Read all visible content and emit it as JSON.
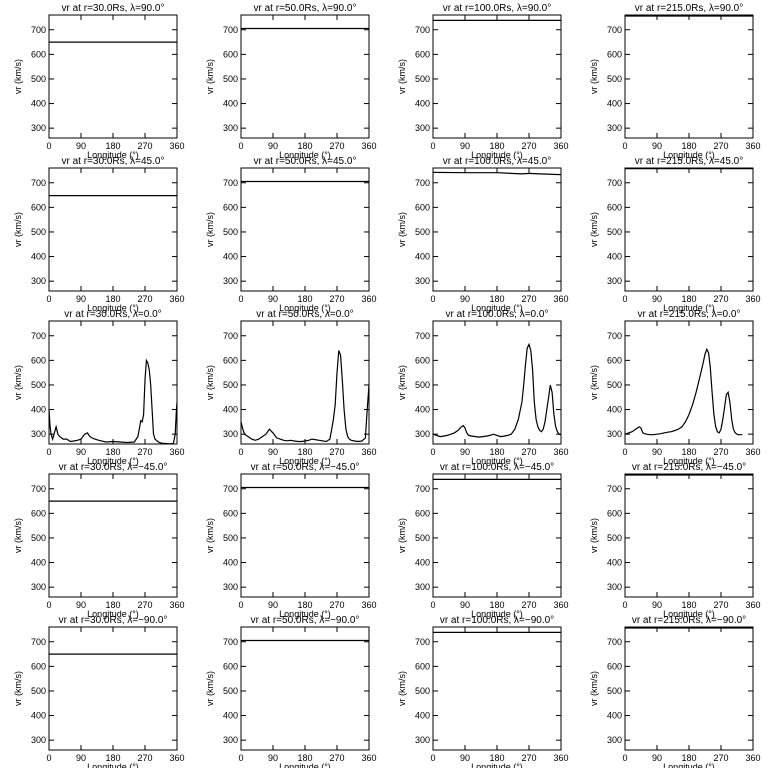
{
  "figure": {
    "x_label": "Longitude (°)",
    "y_label": "vr (km/s)",
    "x_ticks": [
      0,
      90,
      180,
      270,
      360
    ],
    "y_ticks": [
      300,
      400,
      500,
      600,
      700
    ],
    "xlim": [
      0,
      360
    ],
    "ylim": [
      260,
      760
    ]
  },
  "chart_data": [
    {
      "type": "line",
      "title": "vr at r=30.0Rs, λ=90.0°",
      "xlabel": "Longitude (°)",
      "ylabel": "vr (km/s)",
      "xlim": [
        0,
        360
      ],
      "ylim": [
        260,
        760
      ],
      "series": [
        {
          "x": [
            0,
            360
          ],
          "y": [
            650,
            650
          ]
        }
      ]
    },
    {
      "type": "line",
      "title": "vr at r=50.0Rs, λ=90.0°",
      "xlabel": "Longitude (°)",
      "ylabel": "vr (km/s)",
      "xlim": [
        0,
        360
      ],
      "ylim": [
        260,
        760
      ],
      "series": [
        {
          "x": [
            0,
            360
          ],
          "y": [
            705,
            705
          ]
        }
      ]
    },
    {
      "type": "line",
      "title": "vr at r=100.0Rs, λ=90.0°",
      "xlabel": "Longitude (°)",
      "ylabel": "vr (km/s)",
      "xlim": [
        0,
        360
      ],
      "ylim": [
        260,
        760
      ],
      "series": [
        {
          "x": [
            0,
            360
          ],
          "y": [
            738,
            738
          ]
        }
      ]
    },
    {
      "type": "line",
      "title": "vr at r=215.0Rs, λ=90.0°",
      "xlabel": "Longitude (°)",
      "ylabel": "vr (km/s)",
      "xlim": [
        0,
        360
      ],
      "ylim": [
        260,
        760
      ],
      "series": [
        {
          "x": [
            0,
            360
          ],
          "y": [
            756,
            756
          ]
        }
      ]
    },
    {
      "type": "line",
      "title": "vr at r=30.0Rs, λ=45.0°",
      "xlabel": "Longitude (°)",
      "ylabel": "vr (km/s)",
      "xlim": [
        0,
        360
      ],
      "ylim": [
        260,
        760
      ],
      "series": [
        {
          "x": [
            0,
            360
          ],
          "y": [
            648,
            648
          ]
        }
      ]
    },
    {
      "type": "line",
      "title": "vr at r=50.0Rs, λ=45.0°",
      "xlabel": "Longitude (°)",
      "ylabel": "vr (km/s)",
      "xlim": [
        0,
        360
      ],
      "ylim": [
        260,
        760
      ],
      "series": [
        {
          "x": [
            0,
            360
          ],
          "y": [
            705,
            705
          ]
        }
      ]
    },
    {
      "type": "line",
      "title": "vr at r=100.0Rs, λ=45.0°",
      "xlabel": "Longitude (°)",
      "ylabel": "vr (km/s)",
      "xlim": [
        0,
        360
      ],
      "ylim": [
        260,
        760
      ],
      "series": [
        {
          "x": [
            0,
            90,
            180,
            250,
            270,
            300,
            360
          ],
          "y": [
            742,
            741,
            741,
            736,
            738,
            736,
            733
          ]
        }
      ]
    },
    {
      "type": "line",
      "title": "vr at r=215.0Rs, λ=45.0°",
      "xlabel": "Longitude (°)",
      "ylabel": "vr (km/s)",
      "xlim": [
        0,
        360
      ],
      "ylim": [
        260,
        760
      ],
      "series": [
        {
          "x": [
            0,
            360
          ],
          "y": [
            757,
            757
          ]
        }
      ]
    },
    {
      "type": "line",
      "title": "vr at r=30.0Rs, λ=0.0°",
      "xlabel": "Longitude (°)",
      "ylabel": "vr (km/s)",
      "xlim": [
        0,
        360
      ],
      "ylim": [
        260,
        760
      ],
      "series": [
        {
          "x": [
            0,
            3,
            6,
            10,
            14,
            20,
            25,
            30,
            40,
            50,
            60,
            70,
            80,
            90,
            100,
            108,
            115,
            125,
            140,
            160,
            180,
            200,
            220,
            240,
            250,
            255,
            258,
            262,
            266,
            270,
            274,
            278,
            282,
            286,
            290,
            294,
            298,
            302,
            306,
            310,
            315,
            320,
            330,
            340,
            350,
            355,
            358,
            360
          ],
          "y": [
            400,
            330,
            300,
            280,
            300,
            330,
            300,
            290,
            280,
            280,
            270,
            272,
            275,
            280,
            300,
            305,
            290,
            282,
            275,
            268,
            270,
            268,
            266,
            268,
            290,
            330,
            355,
            350,
            380,
            520,
            600,
            590,
            560,
            500,
            400,
            300,
            280,
            275,
            270,
            266,
            264,
            263,
            262,
            261,
            262,
            300,
            390,
            430
          ]
        }
      ]
    },
    {
      "type": "line",
      "title": "vr at r=50.0Rs, λ=0.0°",
      "xlabel": "Longitude (°)",
      "ylabel": "vr (km/s)",
      "xlim": [
        0,
        360
      ],
      "ylim": [
        260,
        760
      ],
      "series": [
        {
          "x": [
            0,
            5,
            10,
            15,
            20,
            30,
            40,
            50,
            60,
            70,
            80,
            90,
            100,
            110,
            120,
            130,
            140,
            150,
            160,
            170,
            180,
            190,
            200,
            220,
            240,
            250,
            255,
            260,
            265,
            270,
            275,
            280,
            285,
            290,
            295,
            300,
            305,
            310,
            320,
            330,
            340,
            350,
            355,
            360
          ],
          "y": [
            350,
            320,
            300,
            295,
            290,
            280,
            275,
            280,
            290,
            300,
            320,
            305,
            285,
            280,
            275,
            273,
            275,
            272,
            270,
            270,
            272,
            275,
            280,
            275,
            270,
            280,
            320,
            360,
            420,
            550,
            640,
            620,
            520,
            400,
            320,
            290,
            280,
            275,
            272,
            270,
            272,
            285,
            400,
            500
          ]
        }
      ]
    },
    {
      "type": "line",
      "title": "vr at r=100.0Rs, λ=0.0°",
      "xlabel": "Longitude (°)",
      "ylabel": "vr (km/s)",
      "xlim": [
        0,
        360
      ],
      "ylim": [
        260,
        760
      ],
      "series": [
        {
          "x": [
            0,
            10,
            20,
            30,
            40,
            50,
            60,
            70,
            80,
            85,
            90,
            95,
            100,
            110,
            120,
            130,
            140,
            150,
            160,
            170,
            180,
            190,
            200,
            210,
            220,
            230,
            240,
            250,
            255,
            260,
            265,
            270,
            275,
            280,
            285,
            290,
            295,
            300,
            305,
            310,
            315,
            320,
            325,
            330,
            335,
            340,
            345,
            350,
            355,
            360
          ],
          "y": [
            300,
            295,
            290,
            292,
            295,
            300,
            305,
            315,
            330,
            335,
            325,
            305,
            295,
            292,
            290,
            288,
            290,
            292,
            295,
            300,
            295,
            290,
            292,
            295,
            300,
            320,
            360,
            430,
            500,
            580,
            650,
            665,
            640,
            560,
            430,
            360,
            330,
            315,
            310,
            320,
            350,
            400,
            450,
            500,
            470,
            380,
            330,
            310,
            300,
            298
          ]
        }
      ]
    },
    {
      "type": "line",
      "title": "vr at r=215.0Rs, λ=0.0°",
      "xlabel": "Longitude (°)",
      "ylabel": "vr (km/s)",
      "xlim": [
        0,
        360
      ],
      "ylim": [
        260,
        760
      ],
      "series": [
        {
          "x": [
            0,
            10,
            20,
            30,
            40,
            45,
            50,
            60,
            70,
            80,
            90,
            100,
            110,
            120,
            130,
            140,
            150,
            160,
            170,
            180,
            190,
            200,
            210,
            220,
            225,
            230,
            235,
            240,
            245,
            250,
            255,
            260,
            265,
            270,
            275,
            280,
            285,
            290,
            295,
            300,
            305,
            310,
            315,
            320,
            325,
            330
          ],
          "y": [
            300,
            305,
            310,
            320,
            330,
            325,
            305,
            300,
            298,
            298,
            300,
            302,
            305,
            308,
            310,
            315,
            320,
            330,
            350,
            380,
            420,
            470,
            530,
            590,
            625,
            645,
            630,
            570,
            470,
            380,
            330,
            310,
            305,
            320,
            360,
            410,
            460,
            470,
            430,
            360,
            320,
            305,
            300,
            298,
            298,
            298
          ]
        }
      ]
    },
    {
      "type": "line",
      "title": "vr at r=30.0Rs, λ=−45.0°",
      "xlabel": "Longitude (°)",
      "ylabel": "vr (km/s)",
      "xlim": [
        0,
        360
      ],
      "ylim": [
        260,
        760
      ],
      "series": [
        {
          "x": [
            0,
            360
          ],
          "y": [
            650,
            650
          ]
        }
      ]
    },
    {
      "type": "line",
      "title": "vr at r=50.0Rs, λ=−45.0°",
      "xlabel": "Longitude (°)",
      "ylabel": "vr (km/s)",
      "xlim": [
        0,
        360
      ],
      "ylim": [
        260,
        760
      ],
      "series": [
        {
          "x": [
            0,
            360
          ],
          "y": [
            705,
            705
          ]
        }
      ]
    },
    {
      "type": "line",
      "title": "vr at r=100.0Rs, λ=−45.0°",
      "xlabel": "Longitude (°)",
      "ylabel": "vr (km/s)",
      "xlim": [
        0,
        360
      ],
      "ylim": [
        260,
        760
      ],
      "series": [
        {
          "x": [
            0,
            360
          ],
          "y": [
            738,
            738
          ]
        }
      ]
    },
    {
      "type": "line",
      "title": "vr at r=215.0Rs, λ=−45.0°",
      "xlabel": "Longitude (°)",
      "ylabel": "vr (km/s)",
      "xlim": [
        0,
        360
      ],
      "ylim": [
        260,
        760
      ],
      "series": [
        {
          "x": [
            0,
            360
          ],
          "y": [
            756,
            756
          ]
        }
      ]
    },
    {
      "type": "line",
      "title": "vr at r=30.0Rs, λ=−90.0°",
      "xlabel": "Longitude (°)",
      "ylabel": "vr (km/s)",
      "xlim": [
        0,
        360
      ],
      "ylim": [
        260,
        760
      ],
      "series": [
        {
          "x": [
            0,
            360
          ],
          "y": [
            650,
            650
          ]
        }
      ]
    },
    {
      "type": "line",
      "title": "vr at r=50.0Rs, λ=−90.0°",
      "xlabel": "Longitude (°)",
      "ylabel": "vr (km/s)",
      "xlim": [
        0,
        360
      ],
      "ylim": [
        260,
        760
      ],
      "series": [
        {
          "x": [
            0,
            360
          ],
          "y": [
            705,
            705
          ]
        }
      ]
    },
    {
      "type": "line",
      "title": "vr at r=100.0Rs, λ=−90.0°",
      "xlabel": "Longitude (°)",
      "ylabel": "vr (km/s)",
      "xlim": [
        0,
        360
      ],
      "ylim": [
        260,
        760
      ],
      "series": [
        {
          "x": [
            0,
            360
          ],
          "y": [
            738,
            738
          ]
        }
      ]
    },
    {
      "type": "line",
      "title": "vr at r=215.0Rs, λ=−90.0°",
      "xlabel": "Longitude (°)",
      "ylabel": "vr (km/s)",
      "xlim": [
        0,
        360
      ],
      "ylim": [
        260,
        760
      ],
      "series": [
        {
          "x": [
            0,
            360
          ],
          "y": [
            756,
            756
          ]
        }
      ]
    }
  ]
}
